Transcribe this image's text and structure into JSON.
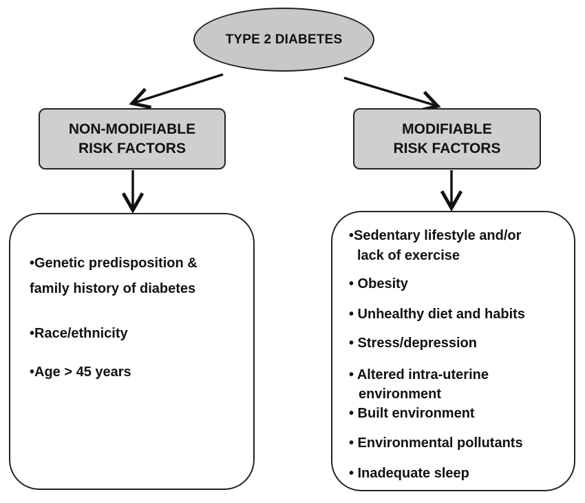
{
  "root": {
    "label": "TYPE 2 DIABETES"
  },
  "categories": [
    {
      "line1": "NON-MODIFIABLE",
      "line2": "RISK FACTORS"
    },
    {
      "line1": "MODIFIABLE",
      "line2": "RISK FACTORS"
    }
  ],
  "non_modifiable": {
    "items": [
      {
        "line1": "•Genetic predisposition &",
        "line2": "family history of diabetes"
      },
      {
        "text": "•Race/ethnicity"
      },
      {
        "text": "•Age > 45 years"
      }
    ]
  },
  "modifiable": {
    "items": [
      {
        "line1": "•Sedentary lifestyle and/or",
        "line2": "lack of exercise"
      },
      {
        "text": "• Obesity"
      },
      {
        "text": "• Unhealthy diet and habits"
      },
      {
        "text": "• Stress/depression"
      },
      {
        "line1": "• Altered intra-uterine",
        "line2": "environment"
      },
      {
        "text": "• Built environment"
      },
      {
        "text": "• Environmental pollutants"
      },
      {
        "text": "• Inadequate sleep"
      }
    ]
  },
  "colors": {
    "node_fill": "#c8c8c8",
    "box_fill": "#cfcfcf",
    "stroke": "#222222"
  }
}
